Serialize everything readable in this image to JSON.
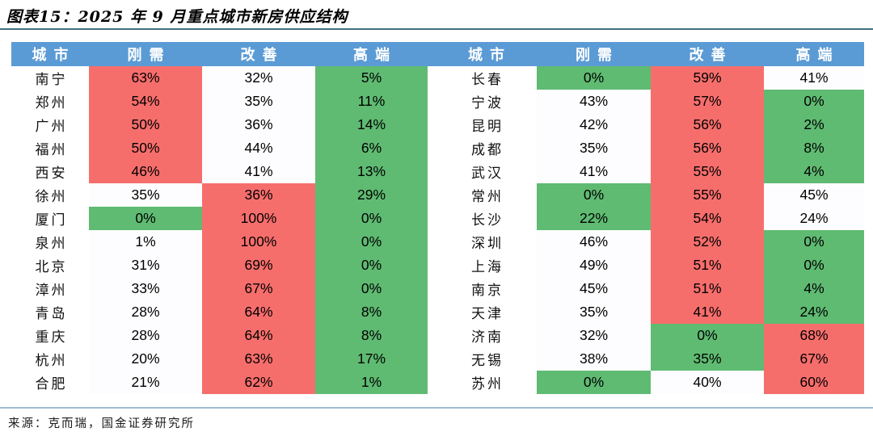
{
  "title": "图表15：2025 年 9 月重点城市新房供应结构",
  "source": "来源：克而瑞，国金证券研究所",
  "colors": {
    "header_bg": "#5B9BD5",
    "header_text": "#FFFFFF",
    "red_cell": "#F66E6C",
    "green_cell": "#5FBB72",
    "white_cell": "#FDFDFF",
    "title_rule": "#3F7082",
    "bottom_rule": "#9EBBD3"
  },
  "chart_data": {
    "type": "table",
    "title": "2025年9月重点城市新房供应结构",
    "columns": [
      "城市",
      "刚需",
      "改善",
      "高端"
    ],
    "value_unit": "percent",
    "cell_color_meaning": {
      "red": "red highlight",
      "green": "green highlight",
      "white": "neutral"
    },
    "left_rows": [
      {
        "city": "南宁",
        "values": [
          "63%",
          "32%",
          "5%"
        ],
        "cell_colors": [
          "red",
          "white",
          "green"
        ]
      },
      {
        "city": "郑州",
        "values": [
          "54%",
          "35%",
          "11%"
        ],
        "cell_colors": [
          "red",
          "white",
          "green"
        ]
      },
      {
        "city": "广州",
        "values": [
          "50%",
          "36%",
          "14%"
        ],
        "cell_colors": [
          "red",
          "white",
          "green"
        ]
      },
      {
        "city": "福州",
        "values": [
          "50%",
          "44%",
          "6%"
        ],
        "cell_colors": [
          "red",
          "white",
          "green"
        ]
      },
      {
        "city": "西安",
        "values": [
          "46%",
          "41%",
          "13%"
        ],
        "cell_colors": [
          "red",
          "white",
          "green"
        ]
      },
      {
        "city": "徐州",
        "values": [
          "35%",
          "36%",
          "29%"
        ],
        "cell_colors": [
          "white",
          "red",
          "green"
        ]
      },
      {
        "city": "厦门",
        "values": [
          "0%",
          "100%",
          "0%"
        ],
        "cell_colors": [
          "green",
          "red",
          "green"
        ]
      },
      {
        "city": "泉州",
        "values": [
          "1%",
          "100%",
          "0%"
        ],
        "cell_colors": [
          "white",
          "red",
          "green"
        ]
      },
      {
        "city": "北京",
        "values": [
          "31%",
          "69%",
          "0%"
        ],
        "cell_colors": [
          "white",
          "red",
          "green"
        ]
      },
      {
        "city": "漳州",
        "values": [
          "33%",
          "67%",
          "0%"
        ],
        "cell_colors": [
          "white",
          "red",
          "green"
        ]
      },
      {
        "city": "青岛",
        "values": [
          "28%",
          "64%",
          "8%"
        ],
        "cell_colors": [
          "white",
          "red",
          "green"
        ]
      },
      {
        "city": "重庆",
        "values": [
          "28%",
          "64%",
          "8%"
        ],
        "cell_colors": [
          "white",
          "red",
          "green"
        ]
      },
      {
        "city": "杭州",
        "values": [
          "20%",
          "63%",
          "17%"
        ],
        "cell_colors": [
          "white",
          "red",
          "green"
        ]
      },
      {
        "city": "合肥",
        "values": [
          "21%",
          "62%",
          "1%"
        ],
        "cell_colors": [
          "white",
          "red",
          "green"
        ]
      }
    ],
    "right_rows": [
      {
        "city": "长春",
        "values": [
          "0%",
          "59%",
          "41%"
        ],
        "cell_colors": [
          "green",
          "red",
          "white"
        ]
      },
      {
        "city": "宁波",
        "values": [
          "43%",
          "57%",
          "0%"
        ],
        "cell_colors": [
          "white",
          "red",
          "green"
        ]
      },
      {
        "city": "昆明",
        "values": [
          "42%",
          "56%",
          "2%"
        ],
        "cell_colors": [
          "white",
          "red",
          "green"
        ]
      },
      {
        "city": "成都",
        "values": [
          "35%",
          "56%",
          "8%"
        ],
        "cell_colors": [
          "white",
          "red",
          "green"
        ]
      },
      {
        "city": "武汉",
        "values": [
          "41%",
          "55%",
          "4%"
        ],
        "cell_colors": [
          "white",
          "red",
          "green"
        ]
      },
      {
        "city": "常州",
        "values": [
          "0%",
          "55%",
          "45%"
        ],
        "cell_colors": [
          "green",
          "red",
          "white"
        ]
      },
      {
        "city": "长沙",
        "values": [
          "22%",
          "54%",
          "24%"
        ],
        "cell_colors": [
          "green",
          "red",
          "white"
        ]
      },
      {
        "city": "深圳",
        "values": [
          "46%",
          "52%",
          "0%"
        ],
        "cell_colors": [
          "white",
          "red",
          "green"
        ]
      },
      {
        "city": "上海",
        "values": [
          "49%",
          "51%",
          "0%"
        ],
        "cell_colors": [
          "white",
          "red",
          "green"
        ]
      },
      {
        "city": "南京",
        "values": [
          "45%",
          "51%",
          "4%"
        ],
        "cell_colors": [
          "white",
          "red",
          "green"
        ]
      },
      {
        "city": "天津",
        "values": [
          "35%",
          "41%",
          "24%"
        ],
        "cell_colors": [
          "white",
          "red",
          "green"
        ]
      },
      {
        "city": "济南",
        "values": [
          "32%",
          "0%",
          "68%"
        ],
        "cell_colors": [
          "white",
          "green",
          "red"
        ]
      },
      {
        "city": "无锡",
        "values": [
          "38%",
          "35%",
          "67%"
        ],
        "cell_colors": [
          "white",
          "green",
          "red"
        ]
      },
      {
        "city": "苏州",
        "values": [
          "0%",
          "40%",
          "60%"
        ],
        "cell_colors": [
          "green",
          "white",
          "red"
        ]
      }
    ]
  }
}
